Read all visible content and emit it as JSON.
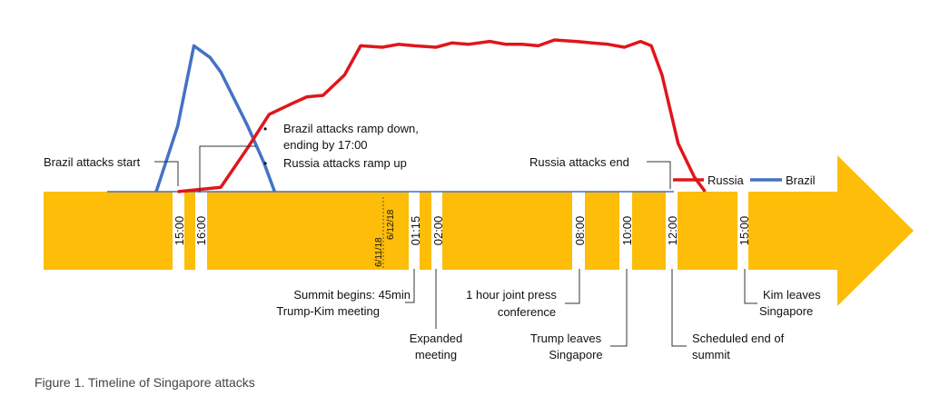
{
  "caption": "Figure 1. Timeline of Singapore attacks",
  "chart_data": {
    "type": "line",
    "title": "",
    "legend": {
      "placement": "top-right",
      "entries": [
        "Russia",
        "Brazil"
      ]
    },
    "series": [
      {
        "name": "Russia",
        "color": "#e0161b",
        "points": [
          [
            0,
            0
          ],
          [
            4,
            3
          ],
          [
            6.5,
            30
          ],
          [
            8.5,
            53
          ],
          [
            10.5,
            60
          ],
          [
            12,
            65
          ],
          [
            13.5,
            66
          ],
          [
            15.5,
            80
          ],
          [
            17,
            100
          ],
          [
            19,
            99
          ],
          [
            20.5,
            101
          ],
          [
            22,
            100
          ],
          [
            24,
            99
          ],
          [
            25.5,
            102
          ],
          [
            27,
            101
          ],
          [
            29,
            103
          ],
          [
            30.5,
            101
          ],
          [
            32,
            101
          ],
          [
            33.5,
            100
          ],
          [
            35,
            104
          ],
          [
            37,
            103
          ],
          [
            38.5,
            102
          ],
          [
            40,
            101
          ],
          [
            41.5,
            99
          ],
          [
            43,
            103
          ],
          [
            44,
            100
          ],
          [
            45,
            80
          ],
          [
            46.5,
            33
          ],
          [
            48,
            10
          ],
          [
            49,
            0
          ]
        ]
      },
      {
        "name": "Brazil",
        "color": "#4472c4",
        "points": [
          [
            0,
            0
          ],
          [
            2,
            45
          ],
          [
            3.5,
            100
          ],
          [
            5,
            92
          ],
          [
            6,
            82
          ],
          [
            8.5,
            45
          ],
          [
            10,
            20
          ],
          [
            11,
            0
          ]
        ]
      }
    ],
    "segments": [
      {
        "ticks": [
          "15:00"
        ]
      },
      {
        "ticks": []
      },
      {
        "ticks": [
          "16:00"
        ]
      },
      {
        "ticks": []
      },
      {
        "ticks": [
          "01:15"
        ]
      },
      {
        "ticks": [
          "02:00"
        ]
      },
      {
        "ticks": [
          "08:00"
        ]
      },
      {
        "ticks": []
      },
      {
        "ticks": [
          "10:00"
        ]
      },
      {
        "ticks": [
          "12:00"
        ]
      },
      {
        "ticks": [
          "15:00"
        ]
      }
    ],
    "date_markers": [
      "6/11/18",
      "6/12/18"
    ],
    "colors": {
      "arrow": "#fdbd08",
      "russia": "#e0161b",
      "brazil": "#4472c4",
      "baseline": "#4472c4"
    },
    "annotations": {
      "brazil_start": "Brazil attacks start",
      "ramp_1a": "Brazil attacks ramp down,",
      "ramp_1b": "ending by 17:00",
      "ramp_2": "Russia attacks ramp up",
      "russia_end": "Russia attacks end",
      "summit_1": "Summit begins: 45min",
      "summit_2": "Trump-Kim meeting",
      "expanded_1": "Expanded",
      "expanded_2": "meeting",
      "press_1": "1 hour joint press",
      "press_2": "conference",
      "trump_1": "Trump leaves",
      "trump_2": "Singapore",
      "sched_1": "Scheduled end of",
      "sched_2": "summit",
      "kim_1": "Kim leaves",
      "kim_2": "Singapore"
    }
  }
}
